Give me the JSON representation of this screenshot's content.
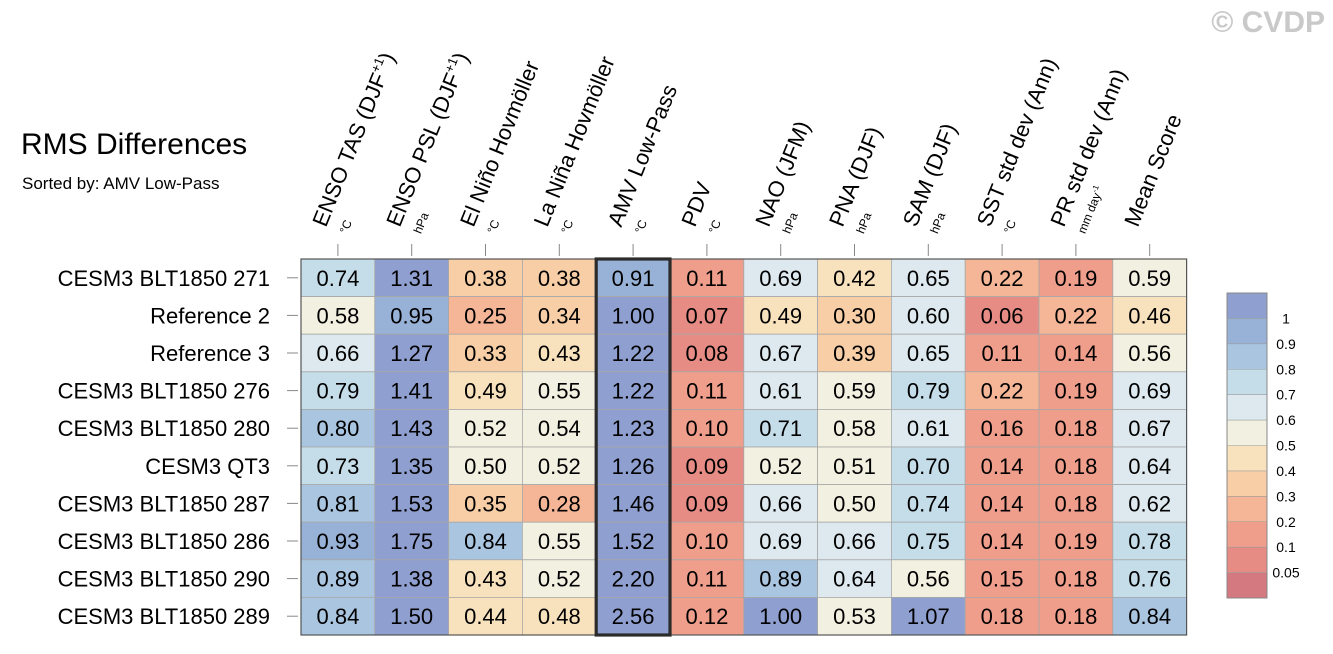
{
  "watermark": "© CVDP",
  "header": {
    "title": "RMS Differences",
    "subtitle": "Sorted by: AMV Low-Pass"
  },
  "chart_data": {
    "type": "heatmap",
    "title": "RMS Differences",
    "subtitle": "Sorted by: AMV Low-Pass",
    "columns": [
      {
        "label": "ENSO TAS (DJF",
        "sup": "+1",
        "close": ")",
        "unit": "°C"
      },
      {
        "label": "ENSO PSL (DJF",
        "sup": "+1",
        "close": ")",
        "unit": "hPa"
      },
      {
        "label": "El Niño Hovmöller",
        "unit": "°C"
      },
      {
        "label": "La Niña Hovmöller",
        "unit": "°C"
      },
      {
        "label": "AMV Low-Pass",
        "unit": "°C"
      },
      {
        "label": "PDV",
        "unit": "°C"
      },
      {
        "label": "NAO (JFM)",
        "unit": "hPa"
      },
      {
        "label": "PNA (DJF)",
        "unit": "hPa"
      },
      {
        "label": "SAM (DJF)",
        "unit": "hPa"
      },
      {
        "label": "SST std dev (Ann)",
        "unit": "°C"
      },
      {
        "label": "PR std dev (Ann)",
        "unit": "mm day",
        "unit_sup": "-1"
      },
      {
        "label": "Mean Score",
        "unit": ""
      }
    ],
    "rows": [
      {
        "name": "CESM3 BLT1850 271",
        "values": [
          0.74,
          1.31,
          0.38,
          0.38,
          0.91,
          0.11,
          0.69,
          0.42,
          0.65,
          0.22,
          0.19,
          0.59
        ]
      },
      {
        "name": "Reference 2",
        "values": [
          0.58,
          0.95,
          0.25,
          0.34,
          1.0,
          0.07,
          0.49,
          0.3,
          0.6,
          0.06,
          0.22,
          0.46
        ]
      },
      {
        "name": "Reference 3",
        "values": [
          0.66,
          1.27,
          0.33,
          0.43,
          1.22,
          0.08,
          0.67,
          0.39,
          0.65,
          0.11,
          0.14,
          0.56
        ]
      },
      {
        "name": "CESM3 BLT1850 276",
        "values": [
          0.79,
          1.41,
          0.49,
          0.55,
          1.22,
          0.11,
          0.61,
          0.59,
          0.79,
          0.22,
          0.19,
          0.69
        ]
      },
      {
        "name": "CESM3 BLT1850 280",
        "values": [
          0.8,
          1.43,
          0.52,
          0.54,
          1.23,
          0.1,
          0.71,
          0.58,
          0.61,
          0.16,
          0.18,
          0.67
        ]
      },
      {
        "name": "CESM3 QT3",
        "values": [
          0.73,
          1.35,
          0.5,
          0.52,
          1.26,
          0.09,
          0.52,
          0.51,
          0.7,
          0.14,
          0.18,
          0.64
        ]
      },
      {
        "name": "CESM3 BLT1850 287",
        "values": [
          0.81,
          1.53,
          0.35,
          0.28,
          1.46,
          0.09,
          0.66,
          0.5,
          0.74,
          0.14,
          0.18,
          0.62
        ]
      },
      {
        "name": "CESM3 BLT1850 286",
        "values": [
          0.93,
          1.75,
          0.84,
          0.55,
          1.52,
          0.1,
          0.69,
          0.66,
          0.75,
          0.14,
          0.19,
          0.78
        ]
      },
      {
        "name": "CESM3 BLT1850 290",
        "values": [
          0.89,
          1.38,
          0.43,
          0.52,
          2.2,
          0.11,
          0.89,
          0.64,
          0.56,
          0.15,
          0.18,
          0.76
        ]
      },
      {
        "name": "CESM3 BLT1850 289",
        "values": [
          0.84,
          1.5,
          0.44,
          0.48,
          2.56,
          0.12,
          1.0,
          0.53,
          1.07,
          0.18,
          0.18,
          0.84
        ]
      }
    ],
    "highlighted_column": "AMV Low-Pass",
    "colorbar": {
      "levels": [
        0.05,
        0.1,
        0.2,
        0.3,
        0.4,
        0.5,
        0.6,
        0.7,
        0.8,
        0.9,
        1
      ],
      "colors": [
        "#d3797f",
        "#e68c84",
        "#ef9e8b",
        "#f4b697",
        "#f7cea6",
        "#f8e2bd",
        "#f2f0e0",
        "#dde9ef",
        "#c4dde9",
        "#a9c5e0",
        "#98b1d6",
        "#8f9fcf"
      ]
    }
  }
}
